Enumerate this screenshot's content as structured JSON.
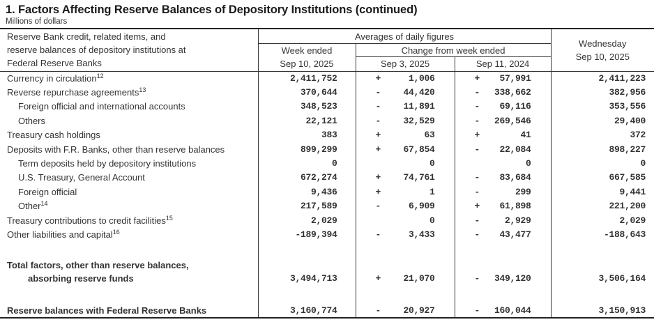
{
  "page": {
    "title": "1. Factors Affecting Reserve Balances of Depository Institutions (continued)",
    "subtitle": "Millions of dollars"
  },
  "colors": {
    "text": "#333333",
    "border": "#333333",
    "title": "#1a1a1a"
  },
  "table": {
    "stub_lines": [
      "Reserve Bank credit, related items, and",
      "reserve balances of depository institutions at",
      "Federal Reserve Banks"
    ],
    "averages_label": "Averages of daily figures",
    "week_ended": [
      "Week ended",
      "Sep 10, 2025"
    ],
    "change_label": "Change from week ended",
    "change_cols": [
      "Sep 3, 2025",
      "Sep 11, 2024"
    ],
    "wednesday": [
      "Wednesday",
      "Sep 10, 2025"
    ],
    "rows": [
      {
        "label": "Currency in circulation",
        "sup": "12",
        "week": "2,411,752",
        "s1": "+",
        "v1": "1,006",
        "s2": "+",
        "v2": "57,991",
        "wed": "2,411,223"
      },
      {
        "label": "Reverse repurchase agreements",
        "sup": "13",
        "week": "370,644",
        "s1": "-",
        "v1": "44,420",
        "s2": "-",
        "v2": "338,662",
        "wed": "382,956"
      },
      {
        "label": "Foreign official and international accounts",
        "indent": 1,
        "week": "348,523",
        "s1": "-",
        "v1": "11,891",
        "s2": "-",
        "v2": "69,116",
        "wed": "353,556"
      },
      {
        "label": "Others",
        "indent": 1,
        "week": "22,121",
        "s1": "-",
        "v1": "32,529",
        "s2": "-",
        "v2": "269,546",
        "wed": "29,400"
      },
      {
        "label": "Treasury cash holdings",
        "week": "383",
        "s1": "+",
        "v1": "63",
        "s2": "+",
        "v2": "41",
        "wed": "372"
      },
      {
        "label": "Deposits with F.R. Banks, other than reserve balances",
        "week": "899,299",
        "s1": "+",
        "v1": "67,854",
        "s2": "-",
        "v2": "22,084",
        "wed": "898,227"
      },
      {
        "label": "Term deposits held by depository institutions",
        "indent": 1,
        "week": "0",
        "s1": "",
        "v1": "0",
        "s2": "",
        "v2": "0",
        "wed": "0"
      },
      {
        "label": "U.S. Treasury, General Account",
        "indent": 1,
        "week": "672,274",
        "s1": "+",
        "v1": "74,761",
        "s2": "-",
        "v2": "83,684",
        "wed": "667,585"
      },
      {
        "label": "Foreign official",
        "indent": 1,
        "week": "9,436",
        "s1": "+",
        "v1": "1",
        "s2": "-",
        "v2": "299",
        "wed": "9,441"
      },
      {
        "label": "Other",
        "sup": "14",
        "indent": 1,
        "week": "217,589",
        "s1": "-",
        "v1": "6,909",
        "s2": "+",
        "v2": "61,898",
        "wed": "221,200"
      },
      {
        "label": "Treasury contributions to credit facilities",
        "sup": "15",
        "week": "2,029",
        "s1": "",
        "v1": "0",
        "s2": "-",
        "v2": "2,929",
        "wed": "2,029"
      },
      {
        "label": "Other liabilities and capital",
        "sup": "16",
        "week": "-189,394",
        "s1": "-",
        "v1": "3,433",
        "s2": "-",
        "v2": "43,477",
        "wed": "-188,643"
      },
      {
        "spacer": true,
        "h": 24
      },
      {
        "label": "Total factors, other than reserve balances,",
        "bold": true,
        "tight": true,
        "week": "",
        "s1": "",
        "v1": "",
        "s2": "",
        "v2": "",
        "wed": ""
      },
      {
        "label": "absorbing reserve funds",
        "bold": true,
        "tight": true,
        "indent": 2,
        "week": "3,494,713",
        "s1": "+",
        "v1": "21,070",
        "s2": "-",
        "v2": "349,120",
        "wed": "3,506,164"
      },
      {
        "spacer": true,
        "h": 27
      },
      {
        "label": "Reserve balances with Federal Reserve Banks",
        "bold": true,
        "tight": true,
        "week": "3,160,774",
        "s1": "-",
        "v1": "20,927",
        "s2": "-",
        "v2": "160,044",
        "wed": "3,150,913"
      }
    ]
  }
}
